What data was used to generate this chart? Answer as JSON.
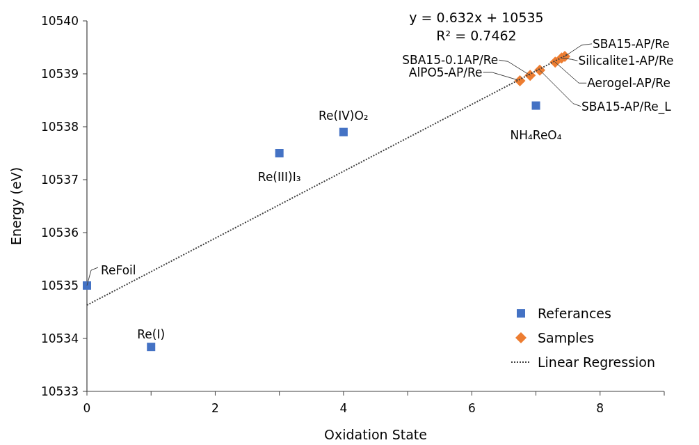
{
  "chart_data": {
    "type": "scatter",
    "xlabel": "Oxidation State",
    "ylabel": "Energy (eV)",
    "xlim": [
      0,
      9
    ],
    "xticks": [
      0,
      {
        "value": 1,
        "label": null
      },
      2,
      {
        "value": 3,
        "label": null
      },
      4,
      {
        "value": 5,
        "label": null
      },
      6,
      {
        "value": 7,
        "label": null
      },
      8,
      {
        "value": 9,
        "label": null
      }
    ],
    "ylim": [
      10533,
      10540
    ],
    "yticks": [
      10533,
      10534,
      10535,
      10536,
      10537,
      10538,
      10539,
      10540
    ],
    "grid": false,
    "legend": "bottom right",
    "series": [
      {
        "name": "Referances",
        "marker": "square",
        "color": "#4472c4",
        "x": [
          0,
          1,
          3,
          4,
          7
        ],
        "values": [
          10535,
          10533.84,
          10537.5,
          10537.9,
          10538.4
        ]
      },
      {
        "name": "Samples",
        "marker": "diamond",
        "color": "#ed7d31",
        "x": [
          6.75,
          6.91,
          7.06,
          7.3,
          7.4,
          7.45
        ],
        "values": [
          10538.87,
          10538.97,
          10539.07,
          10539.22,
          10539.3,
          10539.33
        ]
      },
      {
        "name": "Linear Regression",
        "type": "line",
        "line_style": "dotted",
        "marker": "none",
        "color": "#404040",
        "x": [
          0,
          7.5
        ],
        "values": [
          10534.63,
          10539.37
        ]
      }
    ],
    "annotations": [
      "y = 0.632x + 10535",
      "R² = 0.7462",
      {
        "text": "ReFoil",
        "x": 0,
        "y": 10535
      },
      {
        "text": "Re(I)",
        "x": 1,
        "y": 10533.84
      },
      {
        "text": "Re(III)I₃",
        "x": 3,
        "y": 10537.5
      },
      {
        "text": "Re(IV)O₂",
        "x": 4,
        "y": 10537.9
      },
      {
        "text": "NH₄ReO₄",
        "x": 7,
        "y": 10538.4
      },
      {
        "text": "AlPO5-AP/Re",
        "x": 6.75,
        "y": 10538.87
      },
      {
        "text": "SBA15-0.1AP/Re",
        "x": 6.91,
        "y": 10538.97
      },
      {
        "text": "SBA15-AP/Re_L",
        "x": 7.06,
        "y": 10539.07
      },
      {
        "text": "Aerogel-AP/Re",
        "x": 7.3,
        "y": 10539.22
      },
      {
        "text": "Silicalite1-AP/Re",
        "x": 7.4,
        "y": 10539.3
      },
      {
        "text": "SBA15-AP/Re",
        "x": 7.45,
        "y": 10539.33
      }
    ]
  }
}
